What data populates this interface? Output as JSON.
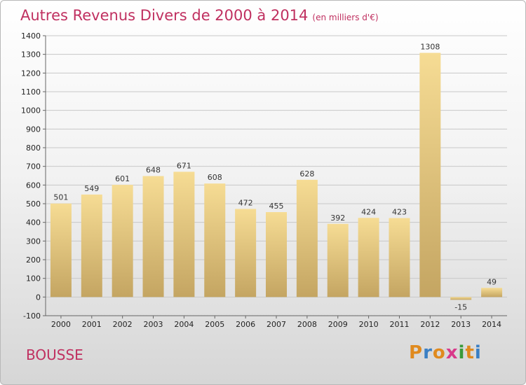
{
  "header": {
    "title": "Autres Revenus Divers de 2000 à 2014",
    "unit": "(en milliers d'€)"
  },
  "footer": {
    "commune": "BOUSSE",
    "logo_letters": [
      "P",
      "r",
      "o",
      "x",
      "i",
      "t",
      "i"
    ],
    "logo_colors": [
      "#e08a1e",
      "#3a7fc4",
      "#e08a1e",
      "#d83a8a",
      "#3a9a3a",
      "#e08a1e",
      "#3a7fc4"
    ]
  },
  "colors": {
    "title": "#c03060",
    "bar_light": "#f6dc94",
    "bar_dark": "#c4a562",
    "grid": "#c8c8c8"
  },
  "chart_data": {
    "type": "bar",
    "title": "Autres Revenus Divers de 2000 à 2014",
    "subtitle": "(en milliers d'€)",
    "categories": [
      "2000",
      "2001",
      "2002",
      "2003",
      "2004",
      "2005",
      "2006",
      "2007",
      "2008",
      "2009",
      "2010",
      "2011",
      "2012",
      "2013",
      "2014"
    ],
    "values": [
      501,
      549,
      601,
      648,
      671,
      608,
      472,
      455,
      628,
      392,
      424,
      423,
      1308,
      -15,
      49
    ],
    "value_labels": [
      "501",
      "549",
      "601",
      "648",
      "671",
      "608",
      "472",
      "455",
      "628",
      "392",
      "424",
      "423",
      "1308",
      "-15",
      "49"
    ],
    "yticks": [
      -100,
      0,
      100,
      200,
      300,
      400,
      500,
      600,
      700,
      800,
      900,
      1000,
      1100,
      1200,
      1300,
      1400
    ],
    "ylim": [
      -100,
      1400
    ],
    "grid": true,
    "legend": "none"
  }
}
